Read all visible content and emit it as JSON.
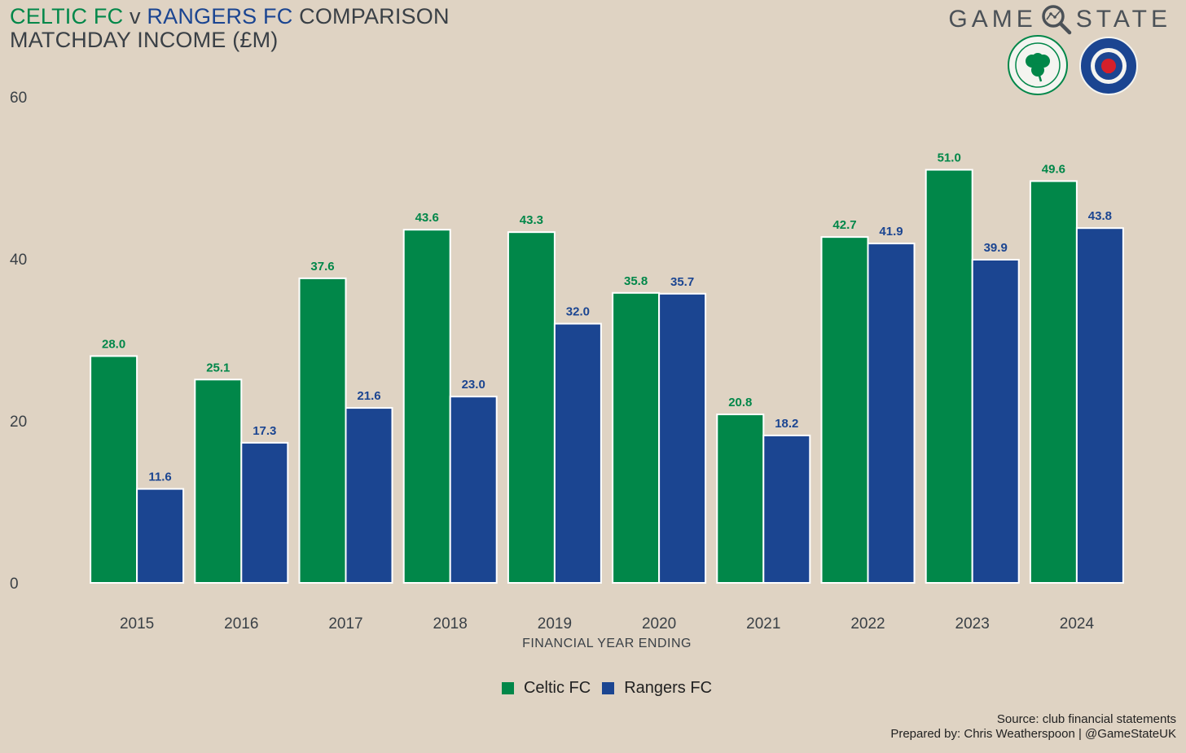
{
  "title": {
    "team1": "CELTIC FC",
    "versus": "v",
    "team2": "RANGERS FC",
    "suffix": "COMPARISON",
    "line2": "MATCHDAY INCOME (£M)"
  },
  "brand": {
    "left": "GAME",
    "right": "STATE"
  },
  "logos": {
    "celtic": "celtic-crest-icon",
    "rangers": "rangers-crest-icon"
  },
  "colors": {
    "celtic": "#018749",
    "rangers": "#1b4591",
    "background": "#dfd3c3",
    "text": "#3a4046"
  },
  "source": {
    "line1": "Source: club financial statements",
    "line2": "Prepared by: Chris Weatherspoon | @GameStateUK"
  },
  "chart_data": {
    "type": "bar",
    "title": "CELTIC FC v RANGERS FC COMPARISON MATCHDAY INCOME (£M)",
    "xlabel": "FINANCIAL YEAR ENDING",
    "ylabel": "",
    "ylim": [
      0,
      60
    ],
    "yticks": [
      0,
      20,
      40,
      60
    ],
    "grid": false,
    "legend": "bottom-center",
    "categories": [
      "2015",
      "2016",
      "2017",
      "2018",
      "2019",
      "2020",
      "2021",
      "2022",
      "2023",
      "2024"
    ],
    "series": [
      {
        "name": "Celtic FC",
        "color": "#018749",
        "values": [
          28.0,
          25.1,
          37.6,
          43.6,
          43.3,
          35.8,
          20.8,
          42.7,
          51.0,
          49.6
        ],
        "labels": [
          "28.0",
          "25.1",
          "37.6",
          "43.6",
          "43.3",
          "35.8",
          "20.8",
          "42.7",
          "51.0",
          "49.6"
        ]
      },
      {
        "name": "Rangers FC",
        "color": "#1b4591",
        "values": [
          11.6,
          17.3,
          21.6,
          23.0,
          32.0,
          35.7,
          18.2,
          41.9,
          39.9,
          43.8
        ],
        "labels": [
          "11.6",
          "17.3",
          "21.6",
          "23.0",
          "32.0",
          "35.7",
          "18.2",
          "41.9",
          "39.9",
          "43.8"
        ]
      }
    ]
  }
}
